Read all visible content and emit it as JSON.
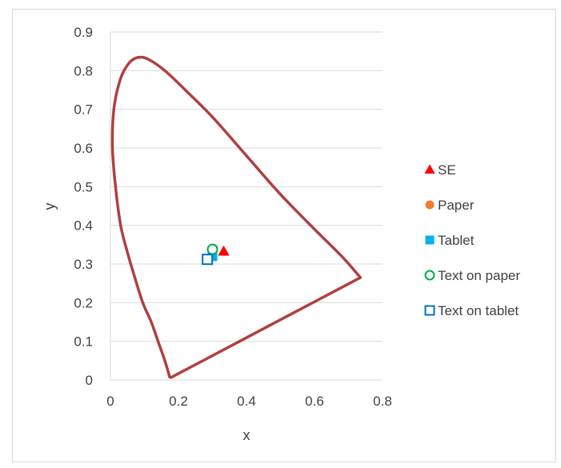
{
  "chart_data": {
    "type": "scatter",
    "xlabel": "x",
    "ylabel": "y",
    "xlim": [
      0,
      0.8
    ],
    "ylim": [
      0,
      0.9
    ],
    "x_ticks": [
      "0",
      "0.2",
      "0.4",
      "0.6",
      "0.8"
    ],
    "y_ticks": [
      "0",
      "0.1",
      "0.2",
      "0.3",
      "0.4",
      "0.5",
      "0.6",
      "0.7",
      "0.8",
      "0.9"
    ],
    "grid": "horizontal",
    "legend_position": "right",
    "boundary": {
      "color": "#b04040",
      "points": [
        [
          0.175,
          0.005
        ],
        [
          0.16,
          0.05
        ],
        [
          0.14,
          0.1
        ],
        [
          0.12,
          0.15
        ],
        [
          0.095,
          0.2
        ],
        [
          0.07,
          0.27
        ],
        [
          0.05,
          0.33
        ],
        [
          0.03,
          0.4
        ],
        [
          0.015,
          0.5
        ],
        [
          0.006,
          0.6
        ],
        [
          0.01,
          0.7
        ],
        [
          0.03,
          0.78
        ],
        [
          0.055,
          0.82
        ],
        [
          0.08,
          0.834
        ],
        [
          0.11,
          0.83
        ],
        [
          0.16,
          0.8
        ],
        [
          0.22,
          0.75
        ],
        [
          0.3,
          0.68
        ],
        [
          0.4,
          0.58
        ],
        [
          0.5,
          0.48
        ],
        [
          0.6,
          0.39
        ],
        [
          0.68,
          0.32
        ],
        [
          0.735,
          0.265
        ],
        [
          0.175,
          0.005
        ]
      ]
    },
    "series": [
      {
        "name": "SE",
        "marker": "triangle",
        "color": "#ff0000",
        "filled": true,
        "points": [
          [
            0.333,
            0.333
          ]
        ]
      },
      {
        "name": "Paper",
        "marker": "circle",
        "color": "#ed7d31",
        "filled": true,
        "points": [
          [
            0.302,
            0.34
          ]
        ]
      },
      {
        "name": "Tablet",
        "marker": "square",
        "color": "#00b0f0",
        "filled": true,
        "points": [
          [
            0.3,
            0.32
          ]
        ]
      },
      {
        "name": "Text on paper",
        "marker": "circle",
        "color": "#00b050",
        "filled": false,
        "points": [
          [
            0.3,
            0.338
          ]
        ]
      },
      {
        "name": "Text on tablet",
        "marker": "square",
        "color": "#0070c0",
        "filled": false,
        "points": [
          [
            0.285,
            0.312
          ]
        ]
      }
    ]
  }
}
